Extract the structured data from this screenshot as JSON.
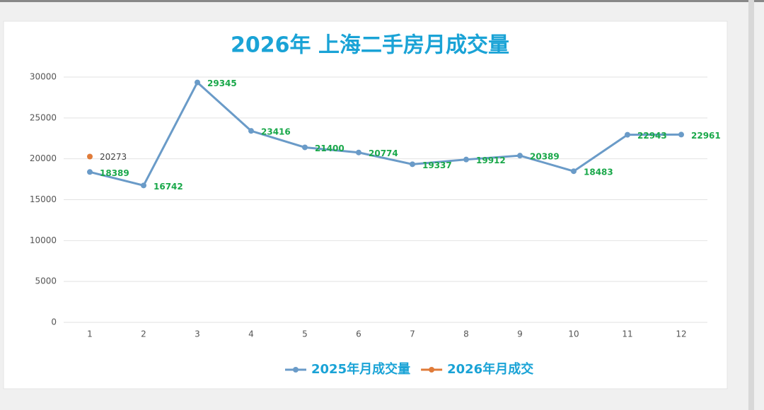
{
  "chart_data": {
    "type": "line",
    "title": "2026年 上海二手房月成交量",
    "categories": [
      "1",
      "2",
      "3",
      "4",
      "5",
      "6",
      "7",
      "8",
      "9",
      "10",
      "11",
      "12"
    ],
    "series": [
      {
        "name": "2025年月成交量",
        "color": "#6a9bc8",
        "label_color": "#1aa84a",
        "values": [
          18389,
          16742,
          29345,
          23416,
          21400,
          20774,
          19337,
          19912,
          20389,
          18483,
          22943,
          22961
        ]
      },
      {
        "name": "2026年月成交",
        "color": "#e07b39",
        "label_color": "#444444",
        "values": [
          20273,
          null,
          null,
          null,
          null,
          null,
          null,
          null,
          null,
          null,
          null,
          null
        ]
      }
    ],
    "ylim": [
      0,
      30000
    ],
    "yticks": [
      0,
      5000,
      10000,
      15000,
      20000,
      25000,
      30000
    ],
    "grid": true,
    "legend": "bottom",
    "title_color": "#1aa3d6"
  }
}
